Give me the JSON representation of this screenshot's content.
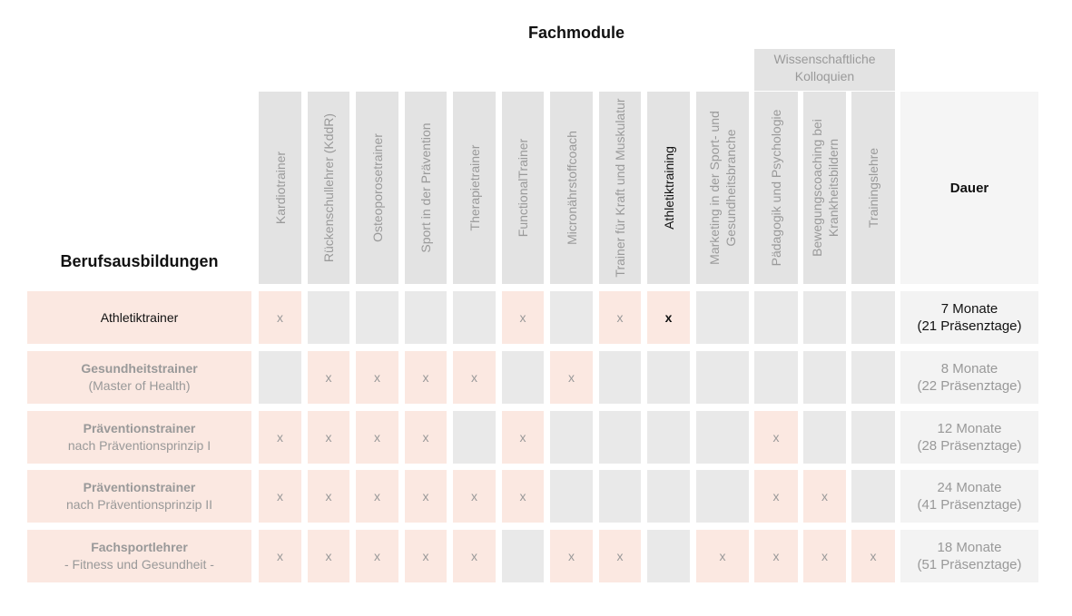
{
  "title": "Fachmodule",
  "group_header": [
    "Wissenschaftliche",
    "Kolloquien"
  ],
  "row_header": "Berufsausbildungen",
  "duration_header": "Dauer",
  "columns": [
    {
      "label": "Kardiotrainer"
    },
    {
      "label": "Rückenschullehrer (KddR)"
    },
    {
      "label": "Osteoporosetrainer"
    },
    {
      "label": "Sport in der Prävention"
    },
    {
      "label": "Therapietrainer"
    },
    {
      "label": "FunctionalTrainer"
    },
    {
      "label": "Micronährstoffcoach"
    },
    {
      "label": "Trainer für Kraft und Muskulatur"
    },
    {
      "label": "Athletiktraining",
      "active": true
    },
    {
      "label": "Marketing in der Sport- und Gesundheitsbranche"
    },
    {
      "label": "Pädagogik und Psychologie"
    },
    {
      "label": "Bewegungscoaching bei Krankheitsbildern"
    },
    {
      "label": "Trainingslehre"
    }
  ],
  "rows": [
    {
      "line1": "Athletiktrainer",
      "line2": "",
      "active": true,
      "cells": [
        1,
        0,
        0,
        0,
        0,
        1,
        0,
        1,
        1,
        0,
        0,
        0,
        0
      ],
      "duration1": "7 Monate",
      "duration2": "(21 Präsenztage)"
    },
    {
      "line1": "Gesundheitstrainer",
      "line2": "(Master of Health)",
      "cells": [
        0,
        1,
        1,
        1,
        1,
        0,
        1,
        0,
        0,
        0,
        0,
        0,
        0
      ],
      "duration1": "8 Monate",
      "duration2": "(22 Präsenztage)"
    },
    {
      "line1": "Präventionstrainer",
      "line2": "nach Präventionsprinzip I",
      "cells": [
        1,
        1,
        1,
        1,
        0,
        1,
        0,
        0,
        0,
        0,
        1,
        0,
        0
      ],
      "duration1": "12 Monate",
      "duration2": "(28 Präsenztage)"
    },
    {
      "line1": "Präventionstrainer",
      "line2": "nach Präventionsprinzip II",
      "cells": [
        1,
        1,
        1,
        1,
        1,
        1,
        0,
        0,
        0,
        0,
        1,
        1,
        0
      ],
      "duration1": "24 Monate",
      "duration2": "(41 Präsenztage)"
    },
    {
      "line1": "Fachsportlehrer",
      "line2": "- Fitness und Gesundheit -",
      "cells": [
        1,
        1,
        1,
        1,
        1,
        0,
        1,
        1,
        0,
        1,
        1,
        1,
        1
      ],
      "duration1": "18 Monate",
      "duration2": "(51 Präsenztage)"
    }
  ],
  "mark": "x",
  "colors": {
    "highlight": "#fbe8e1",
    "neutral": "#e9e9e9",
    "header": "#e3e3e3"
  }
}
